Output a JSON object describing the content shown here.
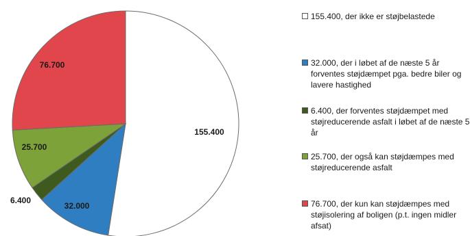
{
  "chart_data": {
    "type": "pie",
    "title": "",
    "slices": [
      {
        "value": 155400,
        "data_label": "155.400",
        "legend": "155.400, der ikke er støjbelastede",
        "color": "#ffffff"
      },
      {
        "value": 32000,
        "data_label": "32.000",
        "legend": "32.000, der i løbet af de næste 5 år forventes støjdæmpet pga. bedre biler og  lavere hastighed",
        "color": "#2e7ec1"
      },
      {
        "value": 6400,
        "data_label": "6.400",
        "legend": "6.400, der forventes støjdæmpet med støjreducerende asfalt  i løbet af de næste 5 år",
        "color": "#3f5a1e"
      },
      {
        "value": 25700,
        "data_label": "25.700",
        "legend": "25.700, der  også kan støjdæmpes med støjreducerende asfalt",
        "color": "#7da23a"
      },
      {
        "value": 76700,
        "data_label": "76.700",
        "legend": "76.700, der kun kan støjdæmpes med støjisolering af boligen (p.t. ingen midler afsat)",
        "color": "#e0464b"
      }
    ],
    "legend_position": "right"
  }
}
